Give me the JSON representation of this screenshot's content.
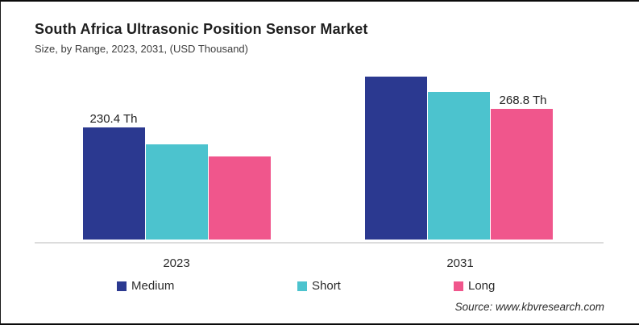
{
  "header": {
    "title": "South Africa Ultrasonic Position Sensor Market",
    "subtitle": "Size, by Range, 2023, 2031, (USD Thousand)"
  },
  "chart_data": {
    "type": "bar",
    "categories": [
      "2023",
      "2031"
    ],
    "series": [
      {
        "name": "Medium",
        "color": "#2B3990",
        "values": [
          230.4,
          335.0
        ]
      },
      {
        "name": "Short",
        "color": "#4CC3CE",
        "values": [
          196.0,
          303.0
        ]
      },
      {
        "name": "Long",
        "color": "#F0568C",
        "values": [
          170.0,
          268.8
        ]
      }
    ],
    "data_labels": [
      {
        "text": "230.4 Th",
        "category": "2023",
        "series": "Medium"
      },
      {
        "text": "268.8 Th",
        "category": "2031",
        "series": "Long"
      }
    ],
    "unit": "USD Thousand",
    "title": "South Africa Ultrasonic Position Sensor Market",
    "xlabel": "",
    "ylabel": "",
    "ylim": [
      0,
      360
    ],
    "grid": false,
    "legend_position": "bottom"
  },
  "footer": {
    "source": "Source: www.kbvresearch.com"
  }
}
